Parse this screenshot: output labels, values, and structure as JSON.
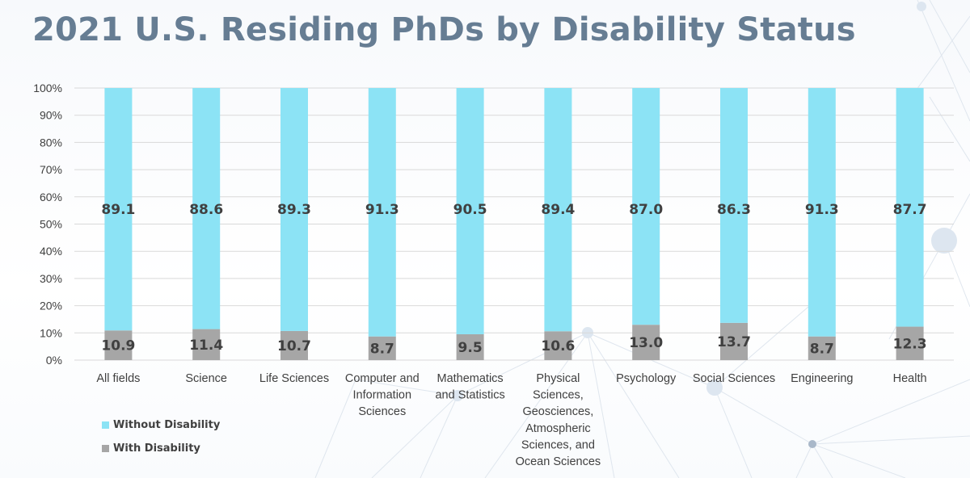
{
  "title": "2021 U.S. Residing PhDs by Disability Status",
  "colors": {
    "without": "#8ce3f5",
    "with": "#a6a6a6",
    "title": "#667d93",
    "gridline": "#d9d9d9",
    "text": "#404040"
  },
  "legend": [
    {
      "label": "Without Disability",
      "color": "#8ce3f5"
    },
    {
      "label": "With Disability",
      "color": "#a6a6a6"
    }
  ],
  "chart_data": {
    "type": "bar",
    "stacked": true,
    "title": "2021 U.S. Residing PhDs by Disability Status",
    "categories": [
      [
        "All fields"
      ],
      [
        "Science"
      ],
      [
        "Life Sciences"
      ],
      [
        "Computer and",
        "Information",
        "Sciences"
      ],
      [
        "Mathematics",
        "and Statistics"
      ],
      [
        "Physical",
        "Sciences,",
        "Geosciences,",
        "Atmospheric",
        "Sciences, and",
        "Ocean Sciences"
      ],
      [
        "Psychology"
      ],
      [
        "Social Sciences"
      ],
      [
        "Engineering"
      ],
      [
        "Health"
      ]
    ],
    "series": [
      {
        "name": "With Disability",
        "values": [
          10.9,
          11.4,
          10.7,
          8.7,
          9.5,
          10.6,
          13.0,
          13.7,
          8.7,
          12.3
        ]
      },
      {
        "name": "Without Disability",
        "values": [
          89.1,
          88.6,
          89.3,
          91.3,
          90.5,
          89.4,
          87.0,
          86.3,
          91.3,
          87.7
        ]
      }
    ],
    "y_ticks": [
      "0%",
      "10%",
      "20%",
      "30%",
      "40%",
      "50%",
      "60%",
      "70%",
      "80%",
      "90%",
      "100%"
    ],
    "ylim": [
      0,
      100
    ],
    "grid": true,
    "legend_position": "bottom-left"
  }
}
